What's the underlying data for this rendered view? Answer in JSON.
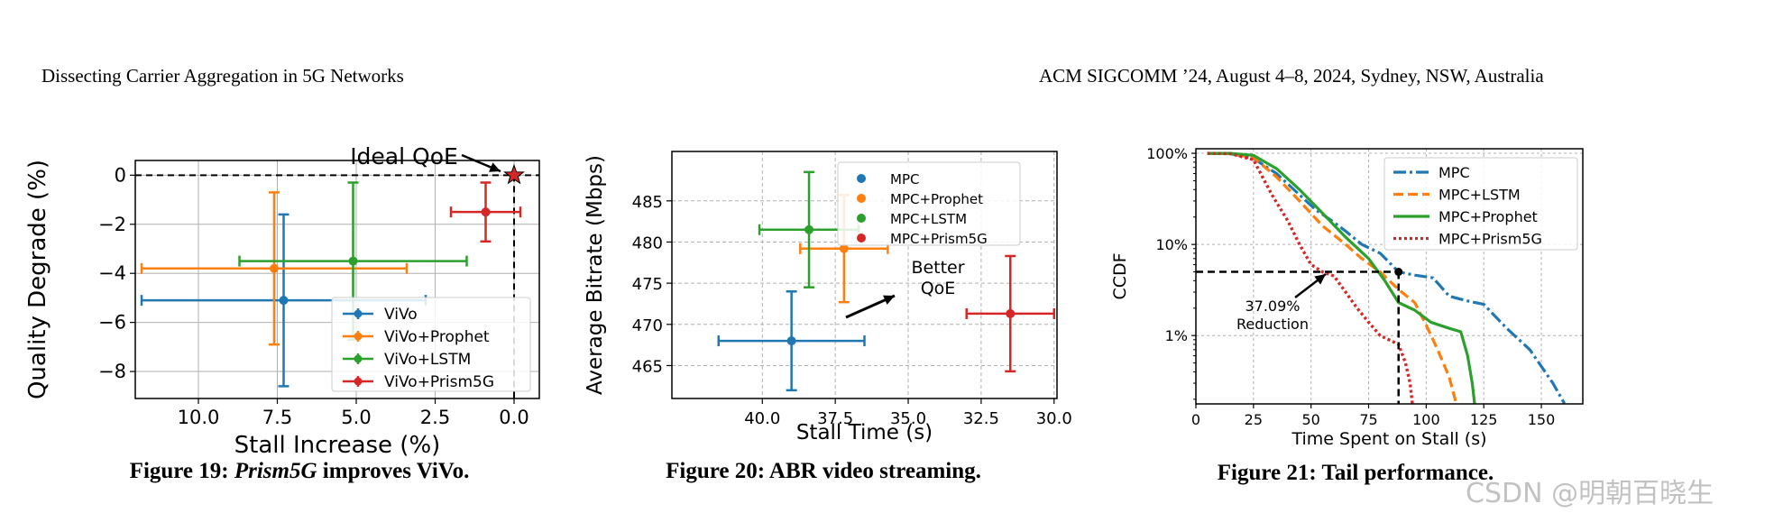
{
  "header": {
    "left": "Dissecting Carrier Aggregation in 5G Networks",
    "right": "ACM SIGCOMM ’24, August 4–8, 2024, Sydney, NSW, Australia"
  },
  "watermark": "CSDN @明朝百晓生",
  "colors": {
    "blue": "#1f77b4",
    "orange": "#ff7f0e",
    "green": "#2ca02c",
    "red": "#d62728"
  },
  "chart_data": [
    {
      "type": "scatter",
      "caption_prefix": "Figure 19:",
      "caption_em": "Prism5G",
      "caption_suffix": " improves ViVo.",
      "xlabel": "Stall Increase (%)",
      "ylabel": "Quality Degrade (%)",
      "xlim": [
        12,
        -0.8
      ],
      "ylim": [
        -9.1,
        0.6
      ],
      "xticks": [
        "10.0",
        "7.5",
        "5.0",
        "2.5",
        "0.0"
      ],
      "yticks": [
        "0",
        "−2",
        "−4",
        "−6",
        "−8"
      ],
      "grid": true,
      "legend": "lower-right",
      "annotation": "Ideal QoE",
      "series": [
        {
          "name": "ViVo",
          "x": 7.3,
          "y": -5.1,
          "xerr": [
            4.5,
            4.5
          ],
          "yerr": [
            3.5,
            3.5
          ]
        },
        {
          "name": "ViVo+Prophet",
          "x": 7.6,
          "y": -3.8,
          "xerr": [
            4.2,
            4.2
          ],
          "yerr": [
            3.1,
            3.1
          ]
        },
        {
          "name": "ViVo+LSTM",
          "x": 5.1,
          "y": -3.5,
          "xerr": [
            3.6,
            3.6
          ],
          "yerr": [
            3.2,
            3.2
          ]
        },
        {
          "name": "ViVo+Prism5G",
          "x": 0.9,
          "y": -1.5,
          "xerr": [
            1.1,
            1.1
          ],
          "yerr": [
            1.2,
            1.2
          ]
        }
      ],
      "ideal": {
        "x": 0.0,
        "y": 0.0
      }
    },
    {
      "type": "scatter",
      "caption": "Figure 20: ABR video streaming.",
      "xlabel": "Stall Time (s)",
      "ylabel": "Average Bitrate (Mbps)",
      "xlim": [
        43.1,
        29.9
      ],
      "ylim": [
        461.0,
        491.0
      ],
      "xticks": [
        "40.0",
        "37.5",
        "35.0",
        "32.5",
        "30.0"
      ],
      "yticks": [
        "465",
        "470",
        "475",
        "480",
        "485"
      ],
      "grid": true,
      "legend": "upper-right",
      "annotation": "Better\nQoE",
      "series": [
        {
          "name": "MPC",
          "x": 39.0,
          "y": 468.0,
          "xerr": [
            2.5,
            2.5
          ],
          "yerr": [
            6.0,
            6.0
          ]
        },
        {
          "name": "MPC+Prophet",
          "x": 37.2,
          "y": 479.2,
          "xerr": [
            1.5,
            1.5
          ],
          "yerr": [
            6.5,
            6.5
          ]
        },
        {
          "name": "MPC+LSTM",
          "x": 38.4,
          "y": 481.5,
          "xerr": [
            1.7,
            1.7
          ],
          "yerr": [
            7.0,
            7.0
          ]
        },
        {
          "name": "MPC+Prism5G",
          "x": 31.5,
          "y": 471.3,
          "xerr": [
            1.5,
            1.5
          ],
          "yerr": [
            7.0,
            7.0
          ]
        }
      ]
    },
    {
      "type": "line",
      "caption": "Figure 21: Tail performance.",
      "xlabel": "Time Spent on Stall (s)",
      "ylabel": "CCDF",
      "xlim": [
        0,
        168
      ],
      "ylim_log10": [
        -0.75,
        2.05
      ],
      "xticks": [
        0,
        25,
        50,
        75,
        100,
        125,
        150
      ],
      "yticks": [
        "1%",
        "10%",
        "100%"
      ],
      "ytick_values": [
        1,
        10,
        100
      ],
      "grid": true,
      "legend": "upper-right",
      "annotation": "37.09%\nReduction",
      "marker": {
        "x": 88,
        "y": 5
      },
      "series": [
        {
          "name": "MPC",
          "points": [
            [
              5,
              100
            ],
            [
              15,
              99
            ],
            [
              25,
              88
            ],
            [
              35,
              60
            ],
            [
              45,
              35
            ],
            [
              52,
              24
            ],
            [
              58,
              19
            ],
            [
              65,
              14
            ],
            [
              72,
              10
            ],
            [
              80,
              8
            ],
            [
              88,
              5
            ],
            [
              95,
              4.6
            ],
            [
              103,
              4.3
            ],
            [
              110,
              2.7
            ],
            [
              118,
              2.4
            ],
            [
              125,
              2.2
            ],
            [
              135,
              1.2
            ],
            [
              145,
              0.7
            ],
            [
              155,
              0.3
            ],
            [
              160,
              0.18
            ]
          ]
        },
        {
          "name": "MPC+LSTM",
          "points": [
            [
              5,
              100
            ],
            [
              15,
              99
            ],
            [
              25,
              90
            ],
            [
              35,
              55
            ],
            [
              45,
              30
            ],
            [
              55,
              16
            ],
            [
              65,
              10
            ],
            [
              72,
              7
            ],
            [
              80,
              5
            ],
            [
              88,
              3.2
            ],
            [
              95,
              2.3
            ],
            [
              100,
              1.3
            ],
            [
              105,
              0.7
            ],
            [
              110,
              0.35
            ],
            [
              113,
              0.18
            ]
          ]
        },
        {
          "name": "MPC+Prophet",
          "points": [
            [
              5,
              100
            ],
            [
              15,
              100
            ],
            [
              25,
              95
            ],
            [
              35,
              68
            ],
            [
              45,
              40
            ],
            [
              55,
              22
            ],
            [
              65,
              12
            ],
            [
              75,
              7
            ],
            [
              82,
              4
            ],
            [
              88,
              2.3
            ],
            [
              95,
              1.9
            ],
            [
              102,
              1.4
            ],
            [
              110,
              1.2
            ],
            [
              115,
              1.1
            ],
            [
              118,
              0.6
            ],
            [
              120,
              0.3
            ],
            [
              121,
              0.18
            ]
          ]
        },
        {
          "name": "MPC+Prism5G",
          "points": [
            [
              5,
              100
            ],
            [
              15,
              99
            ],
            [
              25,
              85
            ],
            [
              33,
              35
            ],
            [
              40,
              18
            ],
            [
              45,
              10
            ],
            [
              50,
              6
            ],
            [
              55,
              5
            ],
            [
              60,
              4.5
            ],
            [
              65,
              3
            ],
            [
              70,
              2
            ],
            [
              75,
              1.4
            ],
            [
              80,
              1
            ],
            [
              88,
              0.8
            ],
            [
              91,
              0.5
            ],
            [
              93,
              0.3
            ],
            [
              94,
              0.18
            ]
          ]
        }
      ]
    }
  ]
}
